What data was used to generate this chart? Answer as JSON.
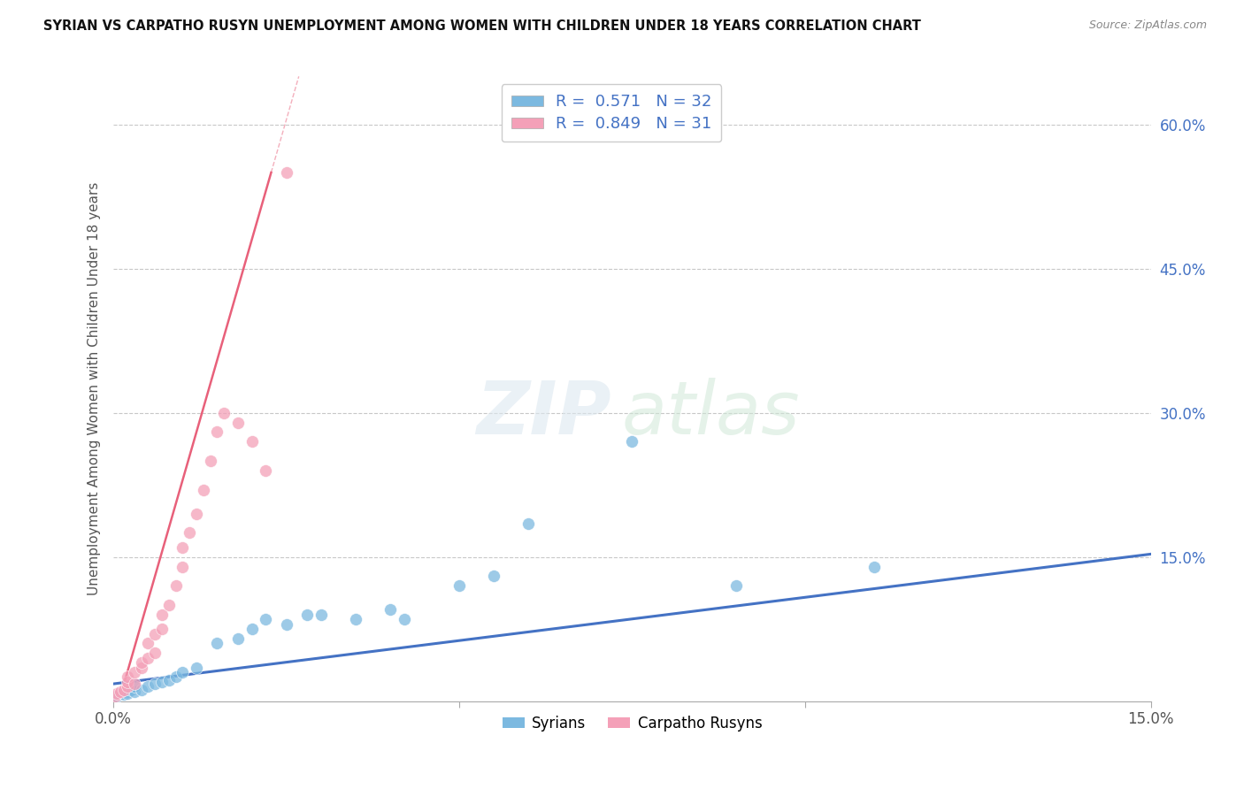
{
  "title": "SYRIAN VS CARPATHO RUSYN UNEMPLOYMENT AMONG WOMEN WITH CHILDREN UNDER 18 YEARS CORRELATION CHART",
  "source": "Source: ZipAtlas.com",
  "ylabel": "Unemployment Among Women with Children Under 18 years",
  "xlim": [
    0.0,
    0.15
  ],
  "ylim": [
    0.0,
    0.65
  ],
  "xticks": [
    0.0,
    0.05,
    0.1,
    0.15
  ],
  "xtick_labels": [
    "0.0%",
    "",
    "",
    "15.0%"
  ],
  "ytick_labels": [
    "15.0%",
    "30.0%",
    "45.0%",
    "60.0%"
  ],
  "ytick_values": [
    0.15,
    0.3,
    0.45,
    0.6
  ],
  "syrians_color": "#7cb9e0",
  "carpatho_color": "#f4a0b8",
  "syrians_line_color": "#4472c4",
  "carpatho_line_color": "#e8607a",
  "background_color": "#ffffff",
  "grid_color": "#c8c8c8",
  "R_syrians": 0.571,
  "N_syrians": 32,
  "R_carpatho": 0.849,
  "N_carpatho": 31,
  "syrians_x": [
    0.0005,
    0.001,
    0.0015,
    0.002,
    0.002,
    0.0025,
    0.003,
    0.003,
    0.004,
    0.005,
    0.006,
    0.007,
    0.008,
    0.009,
    0.01,
    0.012,
    0.015,
    0.018,
    0.02,
    0.022,
    0.025,
    0.028,
    0.03,
    0.035,
    0.04,
    0.042,
    0.05,
    0.055,
    0.06,
    0.075,
    0.09,
    0.11
  ],
  "syrians_y": [
    0.005,
    0.008,
    0.007,
    0.01,
    0.008,
    0.012,
    0.01,
    0.015,
    0.012,
    0.015,
    0.018,
    0.02,
    0.022,
    0.025,
    0.03,
    0.035,
    0.06,
    0.065,
    0.075,
    0.085,
    0.08,
    0.09,
    0.09,
    0.085,
    0.095,
    0.085,
    0.12,
    0.13,
    0.185,
    0.27,
    0.12,
    0.14
  ],
  "carpatho_x": [
    0.0002,
    0.0005,
    0.001,
    0.0015,
    0.002,
    0.002,
    0.002,
    0.003,
    0.003,
    0.004,
    0.004,
    0.005,
    0.005,
    0.006,
    0.006,
    0.007,
    0.007,
    0.008,
    0.009,
    0.01,
    0.01,
    0.011,
    0.012,
    0.013,
    0.014,
    0.015,
    0.016,
    0.018,
    0.02,
    0.022,
    0.025
  ],
  "carpatho_y": [
    0.005,
    0.008,
    0.01,
    0.012,
    0.015,
    0.02,
    0.025,
    0.018,
    0.03,
    0.035,
    0.04,
    0.045,
    0.06,
    0.05,
    0.07,
    0.075,
    0.09,
    0.1,
    0.12,
    0.14,
    0.16,
    0.175,
    0.195,
    0.22,
    0.25,
    0.28,
    0.3,
    0.29,
    0.27,
    0.24,
    0.55
  ]
}
